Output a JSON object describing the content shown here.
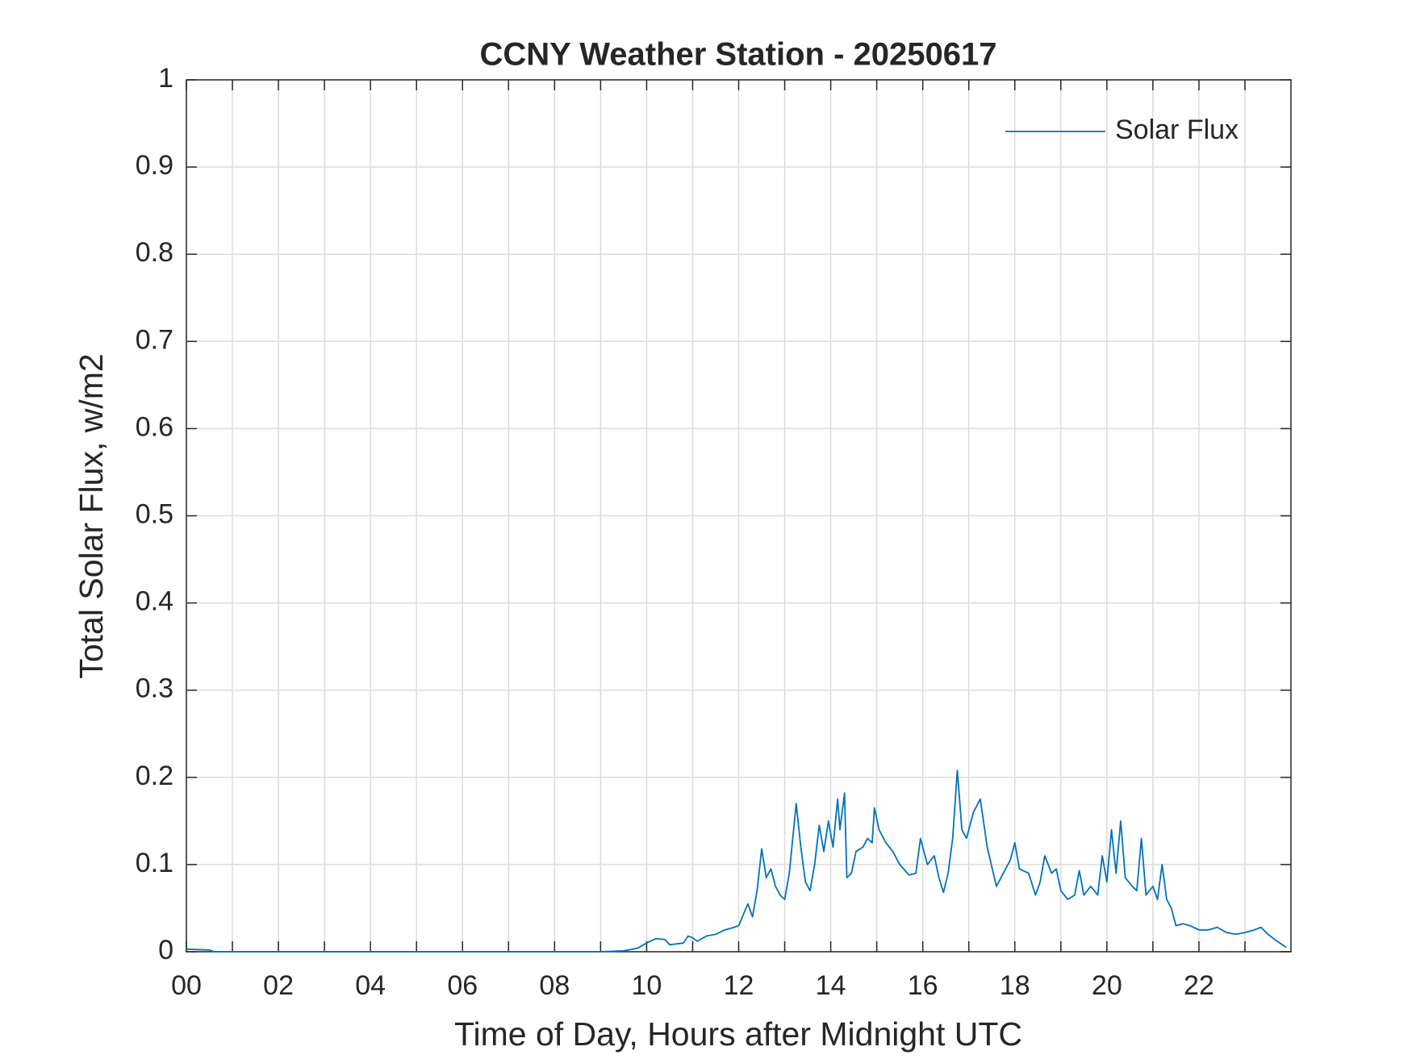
{
  "chart_data": {
    "type": "line",
    "title": "CCNY Weather Station - 20250617",
    "xlabel": "Time of Day, Hours after Midnight UTC",
    "ylabel": "Total Solar Flux, w/m2",
    "xlim": [
      0,
      24
    ],
    "xticks": [
      {
        "value": 0,
        "label": "00"
      },
      {
        "value": 2,
        "label": "02"
      },
      {
        "value": 4,
        "label": "04"
      },
      {
        "value": 6,
        "label": "06"
      },
      {
        "value": 8,
        "label": "08"
      },
      {
        "value": 10,
        "label": "10"
      },
      {
        "value": 12,
        "label": "12"
      },
      {
        "value": 14,
        "label": "14"
      },
      {
        "value": 16,
        "label": "16"
      },
      {
        "value": 18,
        "label": "18"
      },
      {
        "value": 20,
        "label": "20"
      },
      {
        "value": 22,
        "label": "22"
      }
    ],
    "xminorticks": [
      1,
      3,
      5,
      7,
      9,
      11,
      13,
      15,
      17,
      19,
      21,
      23
    ],
    "ylim": [
      0,
      1
    ],
    "yticks": [
      0,
      0.1,
      0.2,
      0.3,
      0.4,
      0.5,
      0.6,
      0.7,
      0.8,
      0.9,
      1
    ],
    "grid": true,
    "legend": "upper right",
    "series": [
      {
        "name": "Solar Flux",
        "color": "#0072bd",
        "x": [
          0,
          0.5,
          0.6,
          9.0,
          9.5,
          9.8,
          10.0,
          10.2,
          10.4,
          10.5,
          10.8,
          10.9,
          11.0,
          11.1,
          11.3,
          11.5,
          11.7,
          11.9,
          12.0,
          12.2,
          12.3,
          12.4,
          12.5,
          12.6,
          12.7,
          12.8,
          12.9,
          13.0,
          13.1,
          13.25,
          13.35,
          13.45,
          13.55,
          13.65,
          13.75,
          13.85,
          13.95,
          14.05,
          14.15,
          14.2,
          14.3,
          14.35,
          14.45,
          14.55,
          14.7,
          14.8,
          14.9,
          14.95,
          15.05,
          15.2,
          15.35,
          15.5,
          15.7,
          15.85,
          15.95,
          16.1,
          16.25,
          16.35,
          16.45,
          16.55,
          16.65,
          16.75,
          16.85,
          16.95,
          17.1,
          17.25,
          17.4,
          17.6,
          17.75,
          17.9,
          18.0,
          18.1,
          18.3,
          18.45,
          18.55,
          18.65,
          18.8,
          18.9,
          19.0,
          19.15,
          19.3,
          19.4,
          19.5,
          19.65,
          19.8,
          19.9,
          20.0,
          20.1,
          20.2,
          20.3,
          20.4,
          20.55,
          20.65,
          20.75,
          20.85,
          21.0,
          21.1,
          21.2,
          21.3,
          21.4,
          21.5,
          21.65,
          21.8,
          22.0,
          22.2,
          22.4,
          22.6,
          22.8,
          23.0,
          23.2,
          23.35,
          23.5,
          23.7,
          23.9
        ],
        "values": [
          0.003,
          0.002,
          0,
          0,
          0.001,
          0.004,
          0.01,
          0.015,
          0.014,
          0.008,
          0.01,
          0.018,
          0.016,
          0.012,
          0.018,
          0.02,
          0.025,
          0.028,
          0.03,
          0.055,
          0.04,
          0.07,
          0.118,
          0.085,
          0.095,
          0.075,
          0.065,
          0.06,
          0.09,
          0.17,
          0.12,
          0.08,
          0.07,
          0.1,
          0.145,
          0.115,
          0.15,
          0.12,
          0.175,
          0.14,
          0.182,
          0.085,
          0.09,
          0.115,
          0.12,
          0.13,
          0.125,
          0.165,
          0.14,
          0.125,
          0.115,
          0.1,
          0.088,
          0.09,
          0.13,
          0.1,
          0.11,
          0.085,
          0.068,
          0.09,
          0.13,
          0.208,
          0.14,
          0.13,
          0.16,
          0.175,
          0.12,
          0.075,
          0.09,
          0.105,
          0.125,
          0.095,
          0.09,
          0.065,
          0.08,
          0.11,
          0.09,
          0.095,
          0.07,
          0.06,
          0.065,
          0.093,
          0.065,
          0.075,
          0.065,
          0.11,
          0.08,
          0.14,
          0.09,
          0.15,
          0.085,
          0.075,
          0.07,
          0.13,
          0.065,
          0.075,
          0.06,
          0.1,
          0.06,
          0.05,
          0.03,
          0.032,
          0.03,
          0.025,
          0.025,
          0.028,
          0.022,
          0.02,
          0.022,
          0.025,
          0.028,
          0.02,
          0.012,
          0.005
        ]
      }
    ]
  }
}
